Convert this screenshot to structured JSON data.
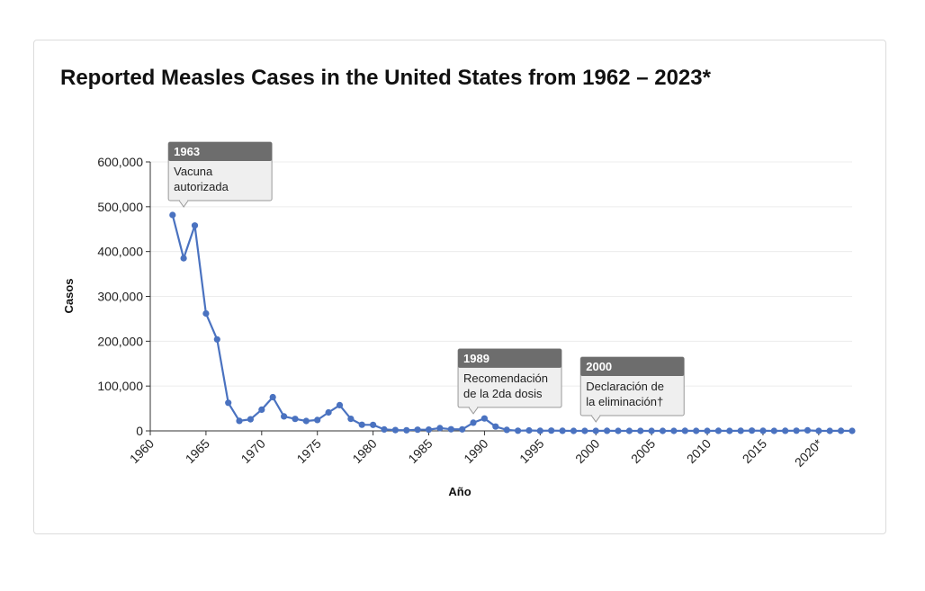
{
  "chart_data": {
    "type": "line",
    "title": "Reported Measles Cases in the United States from 1962 – 2023*",
    "xlabel": "Año",
    "ylabel": "Casos",
    "xlim": [
      1960,
      2023
    ],
    "ylim": [
      0,
      600000
    ],
    "x_ticks": [
      "1960",
      "1965",
      "1970",
      "1975",
      "1980",
      "1985",
      "1990",
      "1995",
      "2000",
      "2005",
      "2010",
      "2015",
      "2020*"
    ],
    "y_ticks": [
      "0",
      "100,000",
      "200,000",
      "300,000",
      "400,000",
      "500,000",
      "600,000"
    ],
    "grid": true,
    "legend": "none",
    "color": "#4a72c0",
    "series": [
      {
        "x": [
          1962,
          1963,
          1964,
          1965,
          1966,
          1967,
          1968,
          1969,
          1970,
          1971,
          1972,
          1973,
          1974,
          1975,
          1976,
          1977,
          1978,
          1979,
          1980,
          1981,
          1982,
          1983,
          1984,
          1985,
          1986,
          1987,
          1988,
          1989,
          1990,
          1991,
          1992,
          1993,
          1994,
          1995,
          1996,
          1997,
          1998,
          1999,
          2000,
          2001,
          2002,
          2003,
          2004,
          2005,
          2006,
          2007,
          2008,
          2009,
          2010,
          2011,
          2012,
          2013,
          2014,
          2015,
          2016,
          2017,
          2018,
          2019,
          2020,
          2021,
          2022,
          2023
        ],
        "values": [
          481530,
          385156,
          458083,
          261904,
          204136,
          62705,
          22231,
          25826,
          47351,
          75290,
          32275,
          26690,
          22094,
          24374,
          41126,
          57345,
          26871,
          13597,
          13506,
          3124,
          1714,
          1497,
          2587,
          2822,
          6282,
          3655,
          3396,
          18193,
          27786,
          9643,
          2237,
          312,
          963,
          281,
          508,
          138,
          100,
          100,
          86,
          116,
          44,
          56,
          37,
          66,
          55,
          43,
          140,
          71,
          63,
          220,
          55,
          187,
          667,
          188,
          86,
          120,
          375,
          1274,
          13,
          49,
          121,
          59
        ]
      }
    ],
    "annotations": [
      {
        "x": 1963,
        "head": "1963",
        "body": [
          "Vacuna",
          "autorizada"
        ]
      },
      {
        "x": 1989,
        "head": "1989",
        "body": [
          "Recomendación",
          "de la 2da dosis"
        ]
      },
      {
        "x": 2000,
        "head": "2000",
        "body": [
          "Declaración de",
          "la eliminación†"
        ]
      }
    ]
  }
}
